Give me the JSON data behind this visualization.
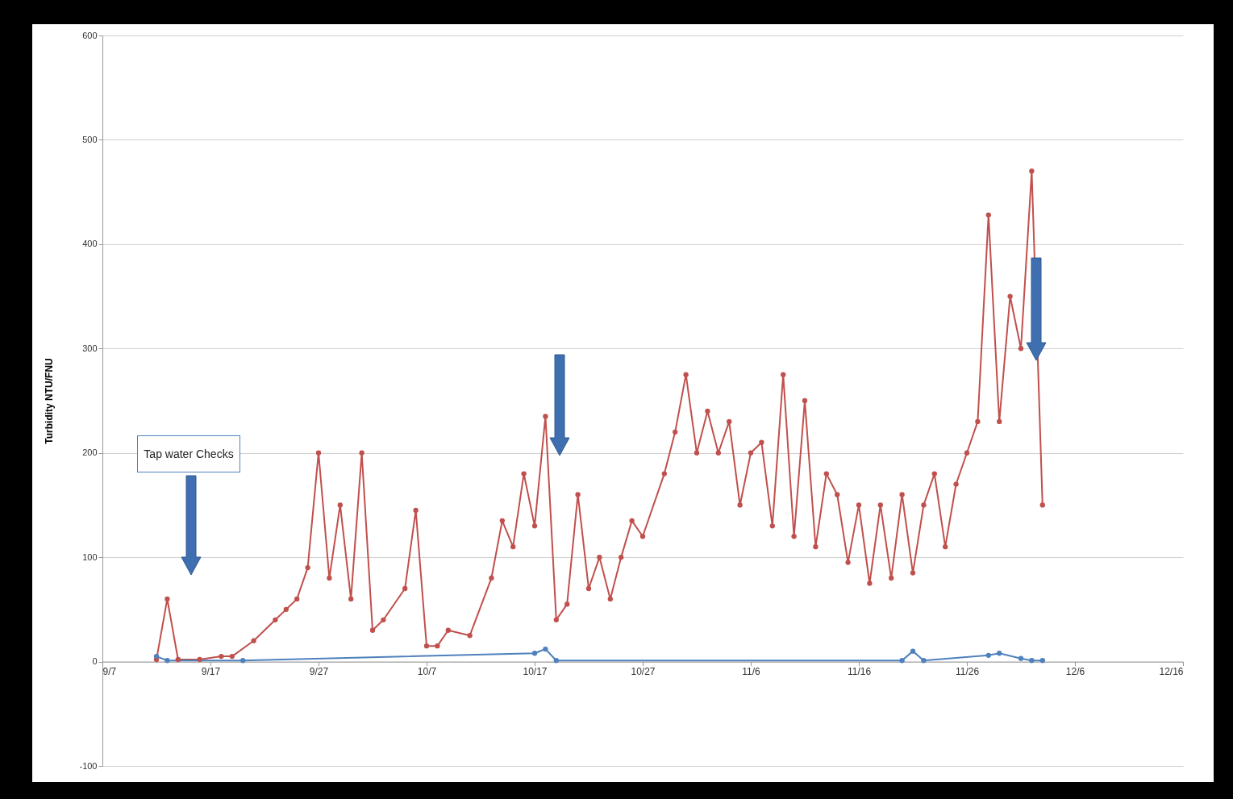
{
  "chart_data": {
    "type": "line",
    "ylabel": "Turbidity NTU/FNU",
    "annotations": [
      "Tap water Checks"
    ],
    "xlim": [
      "--09-07",
      "--12-16"
    ],
    "xticks": [
      {
        "value": "--09-07",
        "label": "9/7"
      },
      {
        "value": "--09-17",
        "label": "9/17"
      },
      {
        "value": "--09-27",
        "label": "9/27"
      },
      {
        "value": "--10-07",
        "label": "10/7"
      },
      {
        "value": "--10-17",
        "label": "10/17"
      },
      {
        "value": "--10-27",
        "label": "10/27"
      },
      {
        "value": "--11-06",
        "label": "11/6"
      },
      {
        "value": "--11-16",
        "label": "11/16"
      },
      {
        "value": "--11-26",
        "label": "11/26"
      },
      {
        "value": "--12-06",
        "label": "12/6"
      },
      {
        "value": "--12-16",
        "label": "12/16"
      }
    ],
    "ylim": [
      -100,
      600
    ],
    "yticks": [
      -100,
      0,
      100,
      200,
      300,
      400,
      500,
      600
    ],
    "grid": "y",
    "marker": "circle",
    "line_style": "solid",
    "series": [
      {
        "color": "#c0504d",
        "x": [
          "--09-12",
          "--09-13",
          "--09-14",
          "--09-16",
          "--09-18",
          "--09-19",
          "--09-21",
          "--09-23",
          "--09-24",
          "--09-25",
          "--09-26",
          "--09-27",
          "--09-28",
          "--09-29",
          "--09-30",
          "--10-01",
          "--10-02",
          "--10-03",
          "--10-05",
          "--10-06",
          "--10-07",
          "--10-08",
          "--10-09",
          "--10-11",
          "--10-13",
          "--10-14",
          "--10-15",
          "--10-16",
          "--10-17",
          "--10-18",
          "--10-19",
          "--10-20",
          "--10-21",
          "--10-22",
          "--10-23",
          "--10-24",
          "--10-25",
          "--10-26",
          "--10-27",
          "--10-29",
          "--10-30",
          "--10-31",
          "--11-01",
          "--11-02",
          "--11-03",
          "--11-04",
          "--11-05",
          "--11-06",
          "--11-07",
          "--11-08",
          "--11-09",
          "--11-10",
          "--11-11",
          "--11-12",
          "--11-13",
          "--11-14",
          "--11-15",
          "--11-16",
          "--11-17",
          "--11-18",
          "--11-19",
          "--11-20",
          "--11-21",
          "--11-22",
          "--11-23",
          "--11-24",
          "--11-25",
          "--11-26",
          "--11-27",
          "--11-28",
          "--11-29",
          "--11-30",
          "--12-01",
          "--12-02",
          "--12-03"
        ],
        "values": [
          2,
          60,
          2,
          2,
          5,
          5,
          20,
          40,
          50,
          60,
          90,
          200,
          80,
          150,
          60,
          200,
          30,
          40,
          70,
          145,
          15,
          15,
          30,
          25,
          80,
          135,
          110,
          180,
          130,
          235,
          40,
          55,
          160,
          70,
          100,
          60,
          100,
          135,
          120,
          180,
          220,
          275,
          200,
          240,
          200,
          230,
          150,
          200,
          210,
          130,
          275,
          120,
          250,
          110,
          180,
          160,
          95,
          150,
          75,
          150,
          80,
          160,
          85,
          150,
          180,
          110,
          170,
          200,
          230,
          428,
          230,
          350,
          300,
          470,
          150
        ]
      },
      {
        "color": "#4f81bd",
        "x": [
          "--09-12",
          "--09-13",
          "--09-20",
          "--10-17",
          "--10-18",
          "--10-19",
          "--11-20",
          "--11-21",
          "--11-22",
          "--11-28",
          "--11-29",
          "--12-01",
          "--12-02",
          "--12-03"
        ],
        "values": [
          5,
          1,
          1,
          8,
          12,
          1,
          1,
          10,
          1,
          6,
          8,
          3,
          1,
          1
        ]
      }
    ]
  }
}
